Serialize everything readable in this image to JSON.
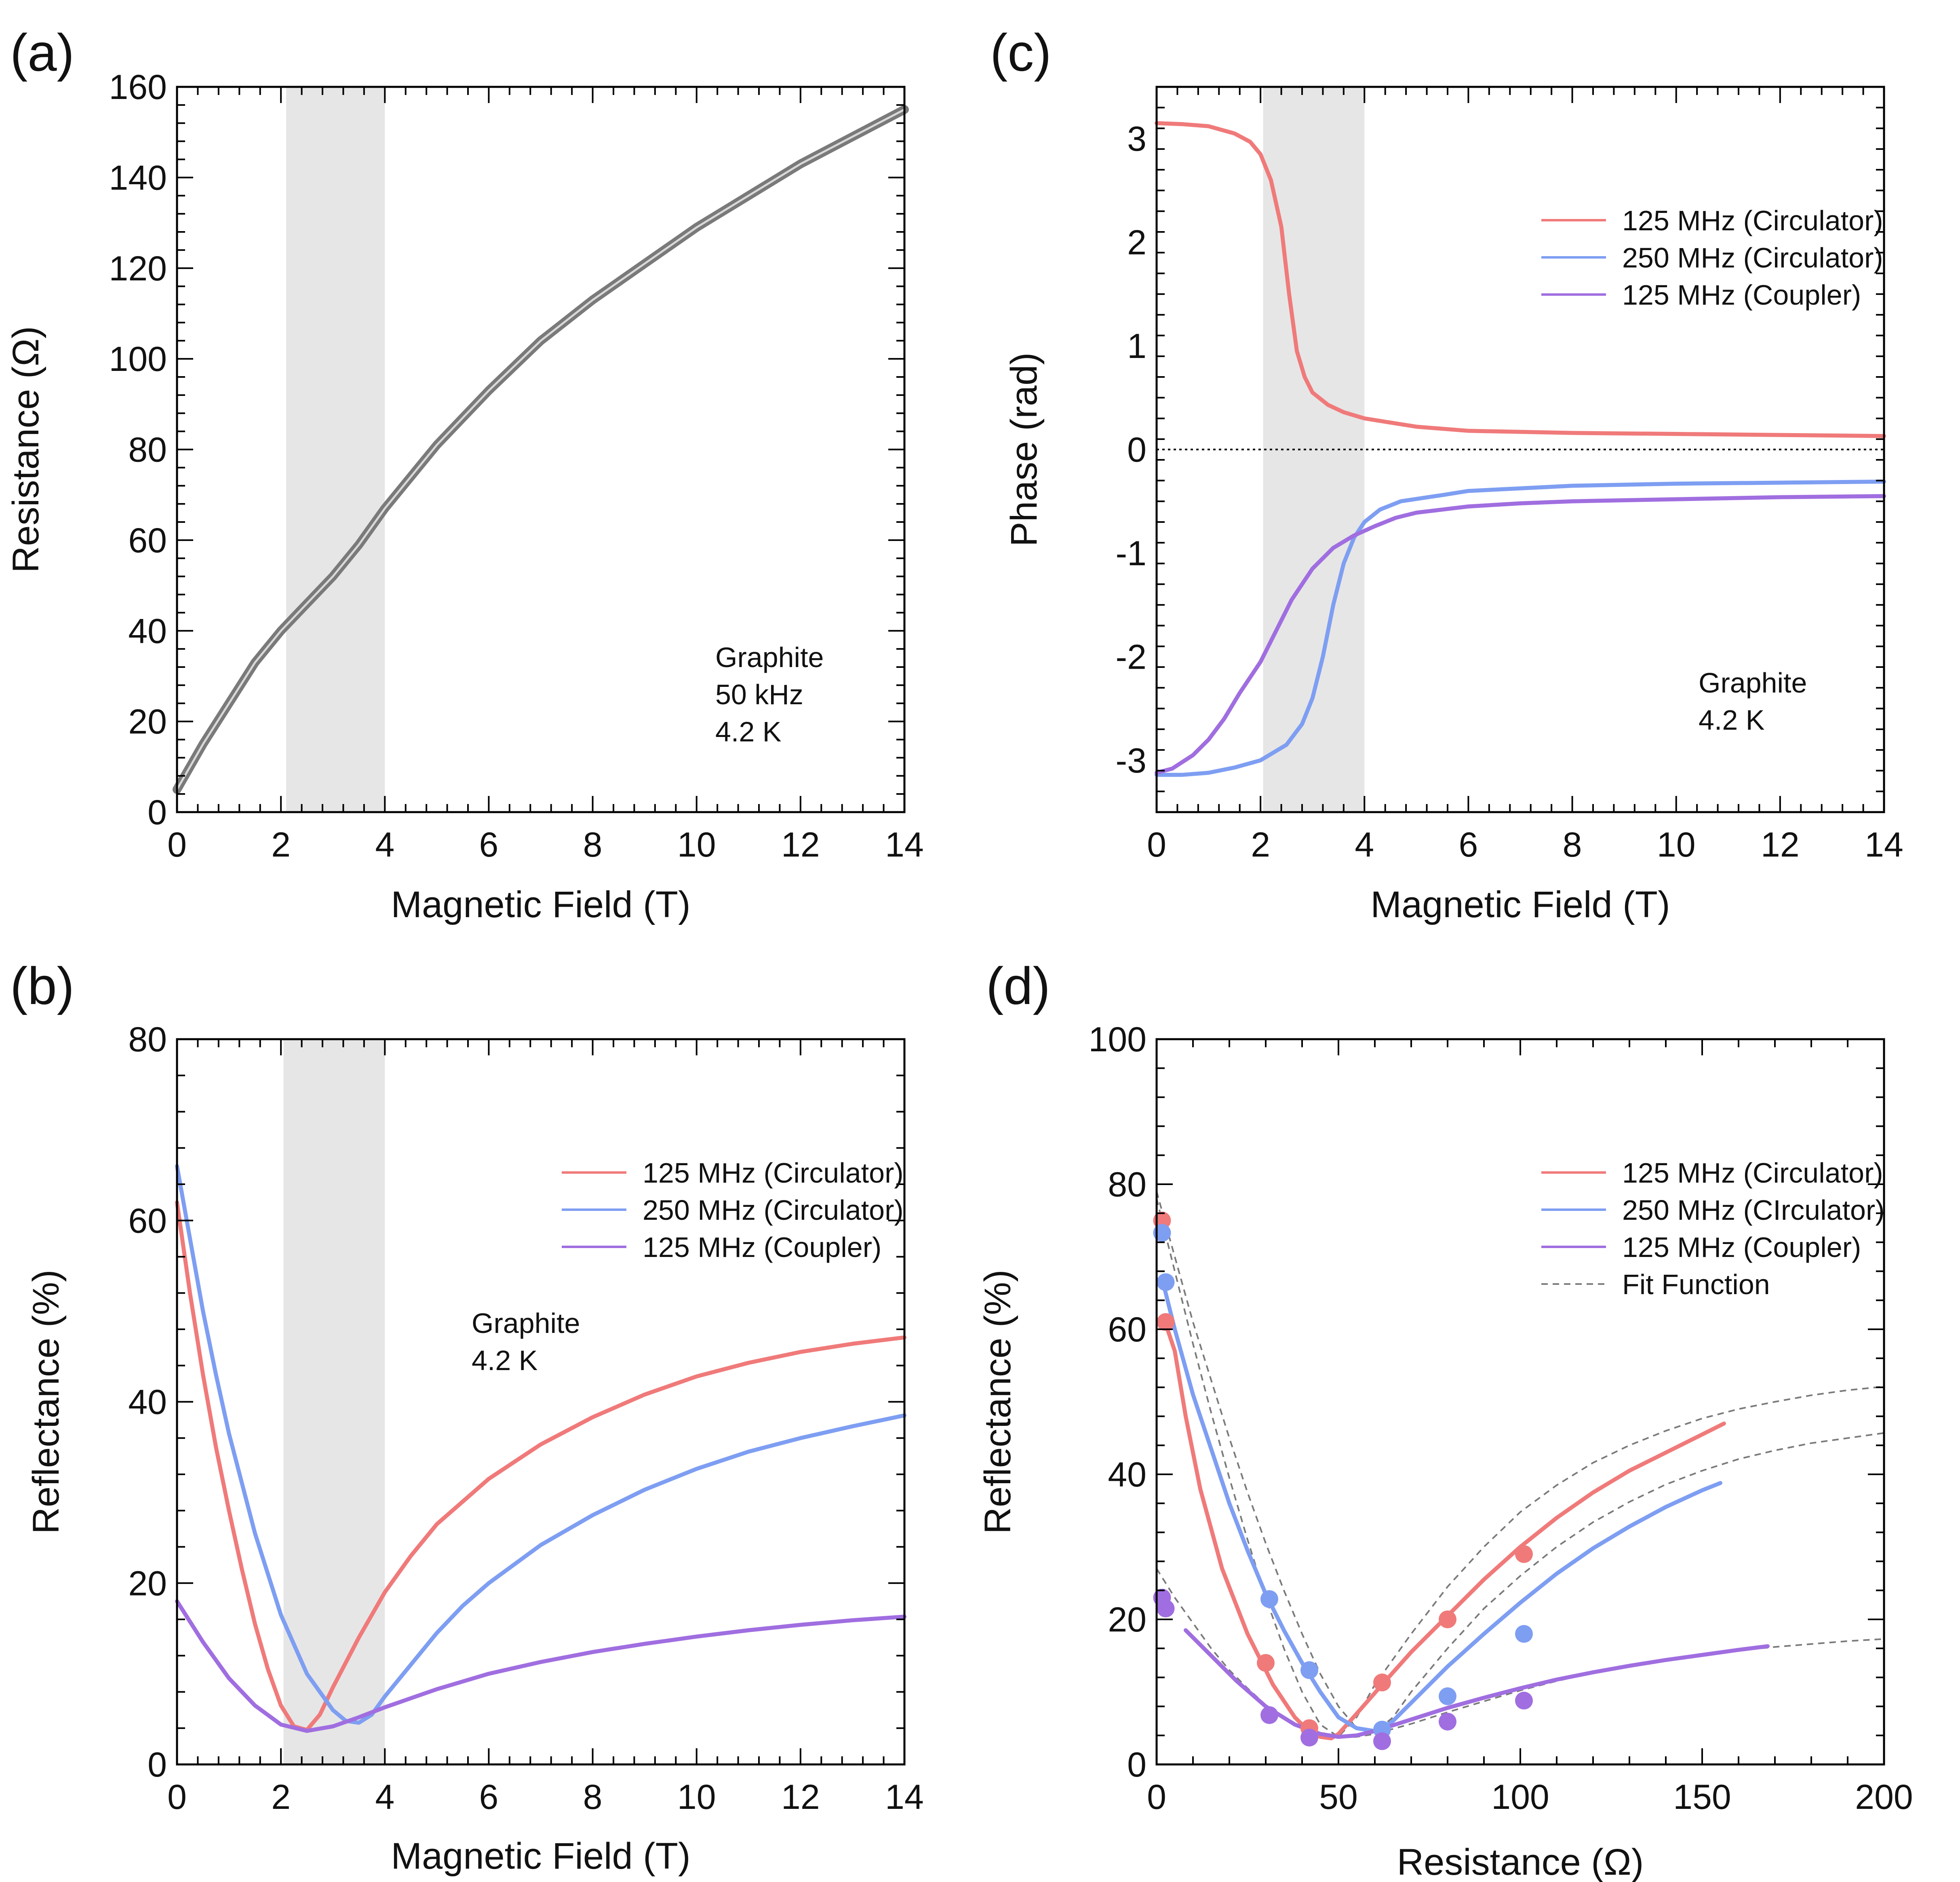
{
  "colors": {
    "r125": "#f07a7a",
    "b250": "#7e9ef2",
    "p125": "#a06ee0",
    "gray": "#7a7a7a",
    "shade": "#e6e6e6",
    "fit": "#7a7a7a",
    "axis": "#000000"
  },
  "chart_data": [
    {
      "panel": "a",
      "label": "(a)",
      "type": "line",
      "xlabel": "Magnetic Field (T)",
      "ylabel": "Resistance (Ω)",
      "xlim": [
        0,
        14
      ],
      "ylim": [
        0,
        160
      ],
      "xticks": [
        "0",
        "2",
        "4",
        "6",
        "8",
        "10",
        "12",
        "14"
      ],
      "yticks": [
        "0",
        "20",
        "40",
        "60",
        "80",
        "100",
        "120",
        "140",
        "160"
      ],
      "shaded_x": [
        2.1,
        4.0
      ],
      "annotation": [
        "Graphite",
        "50 kHz",
        "4.2 K"
      ],
      "annotation_position": "lower-right",
      "series": [
        {
          "name": "Resistance",
          "color": "gray",
          "doubled": true,
          "x": [
            0,
            0.5,
            1,
            1.5,
            2,
            2.5,
            3,
            3.5,
            4,
            5,
            6,
            7,
            8,
            9,
            10,
            11,
            12,
            13,
            14
          ],
          "y": [
            5,
            15,
            24,
            33,
            40,
            46,
            52,
            59,
            67,
            81,
            93,
            104,
            113,
            121,
            129,
            136,
            143,
            149,
            155
          ]
        }
      ]
    },
    {
      "panel": "c",
      "label": "(c)",
      "type": "line",
      "xlabel": "Magnetic Field (T)",
      "ylabel": "Phase (rad)",
      "xlim": [
        0,
        14
      ],
      "ylim": [
        -3.5,
        3.5
      ],
      "xticks": [
        "0",
        "2",
        "4",
        "6",
        "8",
        "10",
        "12",
        "14"
      ],
      "yticks": [
        "-3",
        "-2",
        "-1",
        "0",
        "1",
        "2",
        "3"
      ],
      "shaded_x": [
        2.05,
        4.0
      ],
      "zero_line": true,
      "legend_position": "top-right",
      "annotation": [
        "Graphite",
        "4.2 K"
      ],
      "annotation_position": "lower-right",
      "series": [
        {
          "name": "125 MHz (Circulator)",
          "color": "r125",
          "x": [
            0,
            0.5,
            1,
            1.5,
            1.8,
            2,
            2.2,
            2.4,
            2.55,
            2.7,
            2.85,
            3,
            3.3,
            3.6,
            4,
            5,
            6,
            8,
            10,
            12,
            14
          ],
          "y": [
            3.15,
            3.14,
            3.12,
            3.05,
            2.97,
            2.85,
            2.6,
            2.15,
            1.5,
            0.95,
            0.7,
            0.55,
            0.43,
            0.36,
            0.3,
            0.22,
            0.18,
            0.16,
            0.15,
            0.14,
            0.13
          ]
        },
        {
          "name": "250 MHz (Circulator)",
          "color": "b250",
          "x": [
            0,
            0.5,
            1,
            1.5,
            2,
            2.5,
            2.8,
            3,
            3.2,
            3.4,
            3.6,
            3.8,
            4,
            4.3,
            4.7,
            5.5,
            6,
            8,
            10,
            12,
            14
          ],
          "y": [
            -3.14,
            -3.14,
            -3.12,
            -3.07,
            -3.0,
            -2.85,
            -2.65,
            -2.4,
            -2.0,
            -1.5,
            -1.1,
            -0.85,
            -0.7,
            -0.58,
            -0.5,
            -0.44,
            -0.4,
            -0.35,
            -0.33,
            -0.32,
            -0.31
          ]
        },
        {
          "name": "125 MHz (Coupler)",
          "color": "p125",
          "x": [
            0,
            0.3,
            0.7,
            1,
            1.3,
            1.6,
            2,
            2.3,
            2.6,
            3,
            3.4,
            3.8,
            4.2,
            4.6,
            5,
            6,
            7,
            8,
            10,
            12,
            14
          ],
          "y": [
            -3.12,
            -3.08,
            -2.95,
            -2.8,
            -2.6,
            -2.35,
            -2.05,
            -1.75,
            -1.45,
            -1.15,
            -0.95,
            -0.83,
            -0.74,
            -0.66,
            -0.61,
            -0.55,
            -0.52,
            -0.5,
            -0.48,
            -0.46,
            -0.45
          ]
        }
      ]
    },
    {
      "panel": "b",
      "label": "(b)",
      "type": "line",
      "xlabel": "Magnetic Field (T)",
      "ylabel": "Reflectance (%)",
      "xlim": [
        0,
        14
      ],
      "ylim": [
        0,
        80
      ],
      "xticks": [
        "0",
        "2",
        "4",
        "6",
        "8",
        "10",
        "12",
        "14"
      ],
      "yticks": [
        "0",
        "20",
        "40",
        "60",
        "80"
      ],
      "shaded_x": [
        2.05,
        4.0
      ],
      "legend_position": "top-right",
      "annotation": [
        "Graphite",
        "4.2 K"
      ],
      "annotation_position": "upper-middle",
      "series": [
        {
          "name": "125 MHz (Circulator)",
          "color": "r125",
          "x": [
            0,
            0.25,
            0.5,
            0.75,
            1,
            1.25,
            1.5,
            1.75,
            2,
            2.25,
            2.5,
            2.75,
            3,
            3.5,
            4,
            4.5,
            5,
            6,
            7,
            8,
            9,
            10,
            11,
            12,
            13,
            14
          ],
          "y": [
            62,
            52,
            43,
            35,
            28,
            21.5,
            15.5,
            10.5,
            6.5,
            4.2,
            3.8,
            5.5,
            8.5,
            14,
            19,
            23,
            26.5,
            31.5,
            35.3,
            38.3,
            40.8,
            42.8,
            44.3,
            45.5,
            46.4,
            47.1
          ]
        },
        {
          "name": "250 MHz (Circulator)",
          "color": "b250",
          "x": [
            0,
            0.25,
            0.5,
            0.75,
            1,
            1.5,
            2,
            2.5,
            3,
            3.25,
            3.5,
            3.75,
            4,
            4.5,
            5,
            5.5,
            6,
            7,
            8,
            9,
            10,
            11,
            12,
            13,
            14
          ],
          "y": [
            66,
            58,
            50,
            43,
            36.5,
            25.5,
            16.5,
            10,
            6,
            4.8,
            4.6,
            5.5,
            7.5,
            11,
            14.5,
            17.5,
            20,
            24.2,
            27.5,
            30.3,
            32.6,
            34.5,
            36,
            37.3,
            38.5
          ]
        },
        {
          "name": "125 MHz (Coupler)",
          "color": "p125",
          "x": [
            0,
            0.5,
            1,
            1.5,
            2,
            2.5,
            3,
            3.5,
            4,
            4.5,
            5,
            6,
            7,
            8,
            9,
            10,
            11,
            12,
            13,
            14
          ],
          "y": [
            18,
            13.5,
            9.5,
            6.5,
            4.4,
            3.7,
            4.2,
            5.2,
            6.3,
            7.3,
            8.3,
            10,
            11.3,
            12.4,
            13.3,
            14.1,
            14.8,
            15.4,
            15.9,
            16.3
          ]
        }
      ]
    },
    {
      "panel": "d",
      "label": "(d)",
      "type": "line",
      "xlabel": "Resistance (Ω)",
      "ylabel": "Reflectance (%)",
      "xlim": [
        0,
        200
      ],
      "ylim": [
        0,
        100
      ],
      "xticks": [
        "0",
        "50",
        "100",
        "150",
        "200"
      ],
      "yticks": [
        "0",
        "20",
        "40",
        "60",
        "80",
        "100"
      ],
      "legend_position": "top-right",
      "series": [
        {
          "name": "125 MHz (Circulator)",
          "color": "r125",
          "x": [
            3,
            5,
            8,
            12,
            18,
            25,
            32,
            38,
            42,
            45,
            48,
            50,
            55,
            62,
            70,
            80,
            90,
            100,
            110,
            120,
            130,
            140,
            150,
            156
          ],
          "y": [
            60,
            57,
            48,
            38,
            27,
            18,
            11,
            6.5,
            4.5,
            3.8,
            3.6,
            4.2,
            7,
            11,
            15.5,
            20.5,
            25.5,
            30,
            34,
            37.5,
            40.5,
            43,
            45.5,
            47
          ]
        },
        {
          "name": "250 MHz (CIrculator)",
          "color": "b250",
          "x": [
            2,
            5,
            10,
            15,
            20,
            25,
            30,
            35,
            40,
            45,
            50,
            55,
            60,
            62,
            65,
            70,
            80,
            90,
            100,
            110,
            120,
            130,
            140,
            150,
            155
          ],
          "y": [
            66,
            60,
            51,
            43.5,
            36,
            29.5,
            23.5,
            18.5,
            14,
            10,
            6.5,
            5,
            4.6,
            4.8,
            6,
            8.5,
            13.5,
            18,
            22.3,
            26.3,
            29.8,
            32.8,
            35.5,
            37.8,
            38.8
          ]
        },
        {
          "name": "125 MHz (Coupler)",
          "color": "p125",
          "x": [
            8,
            15,
            22,
            30,
            38,
            45,
            50,
            55,
            60,
            65,
            70,
            80,
            90,
            100,
            110,
            120,
            130,
            140,
            150,
            160,
            168
          ],
          "y": [
            18.5,
            15,
            11.5,
            8,
            5.5,
            4.2,
            3.8,
            4,
            4.6,
            5.4,
            6.2,
            7.8,
            9.2,
            10.5,
            11.7,
            12.7,
            13.6,
            14.4,
            15.1,
            15.8,
            16.3
          ]
        }
      ],
      "fit_function": {
        "name": "Fit Function",
        "curves": [
          {
            "x": [
              0,
              5,
              10,
              15,
              20,
              25,
              30,
              35,
              40,
              45,
              50,
              55,
              60,
              70,
              80,
              90,
              100,
              110,
              120,
              130,
              140,
              150,
              160,
              170,
              180,
              190,
              200
            ],
            "y": [
              78,
              68,
              58,
              48.5,
              39.5,
              31,
              23,
              16,
              10,
              5.5,
              3.8,
              6.5,
              11,
              18,
              24.5,
              30,
              34.8,
              38.5,
              41.6,
              44,
              46,
              47.7,
              49,
              50,
              50.9,
              51.6,
              52.1
            ]
          },
          {
            "x": [
              0,
              5,
              10,
              15,
              20,
              25,
              30,
              35,
              40,
              45,
              50,
              55,
              60,
              65,
              70,
              80,
              90,
              100,
              110,
              120,
              130,
              140,
              150,
              160,
              170,
              180,
              190,
              200
            ],
            "y": [
              79,
              70,
              61,
              53,
              45,
              37.5,
              30.5,
              24,
              18,
              12.5,
              8,
              5,
              4.4,
              6.5,
              10,
              16,
              21.5,
              26,
              30,
              33.4,
              36.2,
              38.6,
              40.5,
              42.1,
              43.3,
              44.3,
              45,
              45.7
            ]
          },
          {
            "x": [
              0,
              5,
              10,
              15,
              20,
              25,
              30,
              35,
              40,
              45,
              50,
              55,
              60,
              70,
              80,
              90,
              100,
              110,
              120,
              130,
              140,
              150,
              160,
              170,
              180,
              190,
              200
            ],
            "y": [
              27,
              23,
              19.5,
              16,
              13,
              10.5,
              8.2,
              6.4,
              5,
              4.1,
              3.7,
              3.8,
              4.2,
              5.6,
              7.2,
              8.7,
              10.2,
              11.5,
              12.6,
              13.6,
              14.4,
              15.1,
              15.7,
              16.2,
              16.6,
              17,
              17.3
            ]
          }
        ]
      },
      "points": [
        {
          "color": "r125",
          "x": [
            1.5,
            2.5,
            30,
            42,
            62,
            80,
            101
          ],
          "y": [
            75,
            61,
            14,
            5,
            11.3,
            20,
            29
          ]
        },
        {
          "color": "b250",
          "x": [
            1.5,
            2.5,
            31,
            42,
            62,
            80,
            101
          ],
          "y": [
            73.3,
            66.5,
            22.8,
            13,
            4.8,
            9.4,
            18
          ]
        },
        {
          "color": "p125",
          "x": [
            1.5,
            2.5,
            31,
            42,
            62,
            80,
            101
          ],
          "y": [
            23,
            21.5,
            6.8,
            3.7,
            3.2,
            5.9,
            8.8
          ]
        }
      ]
    }
  ]
}
